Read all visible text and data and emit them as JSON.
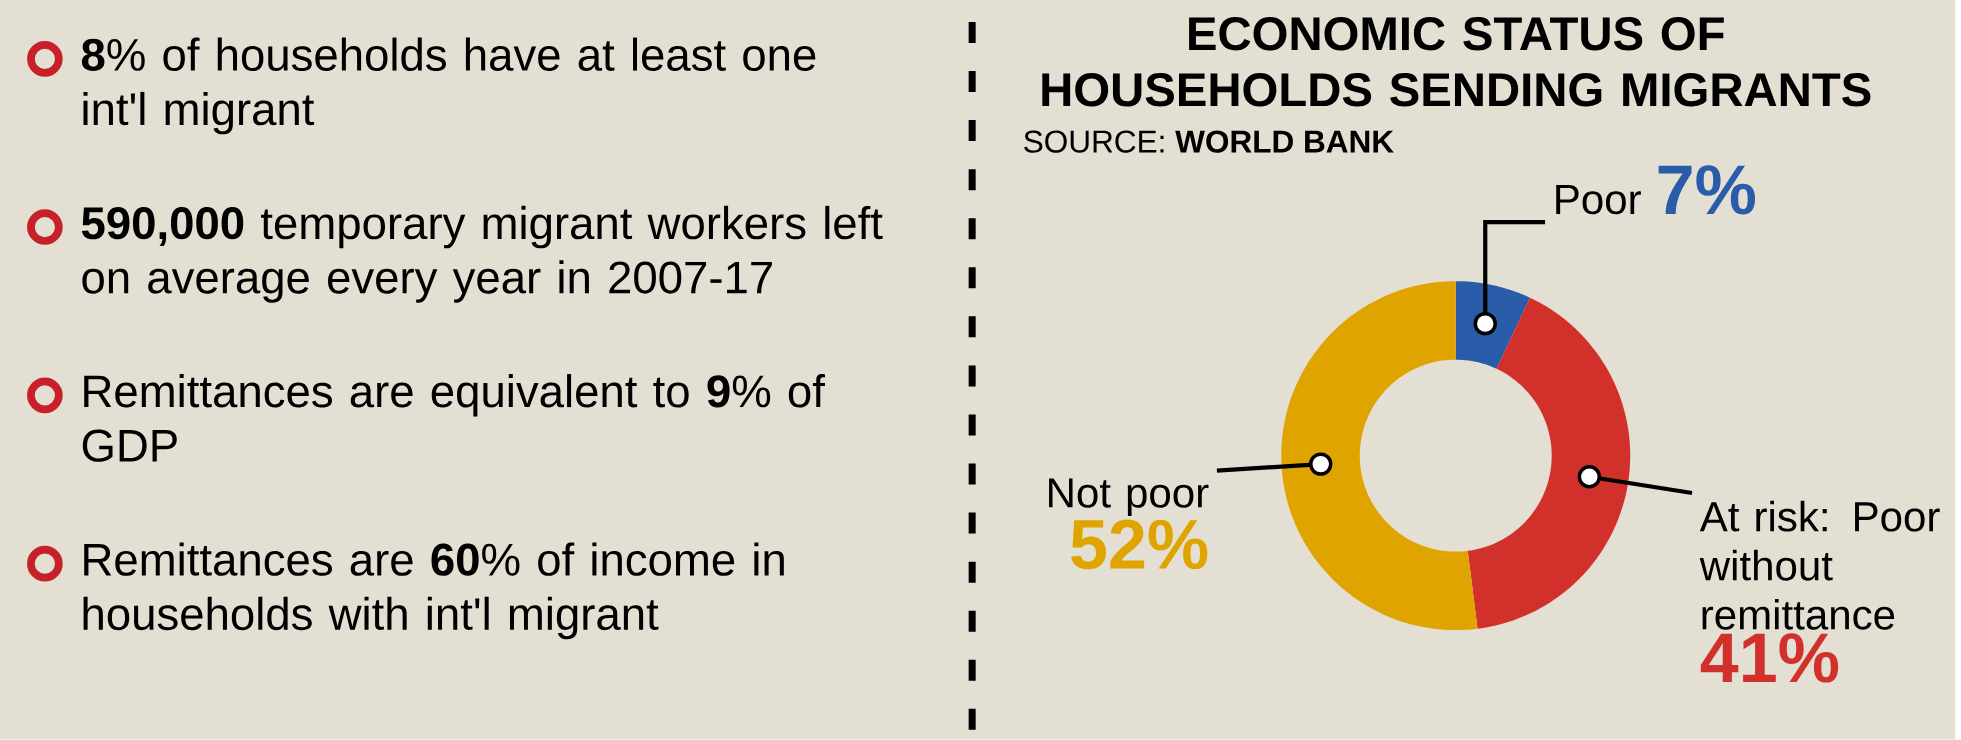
{
  "chart_data": [
    {
      "type": "other",
      "annotations": [
        "**8**% of households have at least one int'l migrant",
        "**590,000** temporary migrant workers left on average every year in 2007-17",
        "Remittances are equivalent to **9**% of GDP",
        "Remittances are **60**% of income in households with int'l migrant"
      ]
    },
    {
      "type": "donut",
      "title": "ECONOMIC STATUS OF HOUSEHOLDS SENDING MIGRANTS",
      "annotations": [
        "SOURCE: **WORLD BANK**"
      ],
      "categories": [
        "Poor",
        "At risk: Poor without remittance",
        "Not poor"
      ],
      "values": [
        7,
        41,
        52
      ],
      "colors": [
        "#2a5caa",
        "#d2312b",
        "#e0a400"
      ],
      "value_labels": [
        "7%",
        "41%",
        "52%"
      ]
    }
  ]
}
